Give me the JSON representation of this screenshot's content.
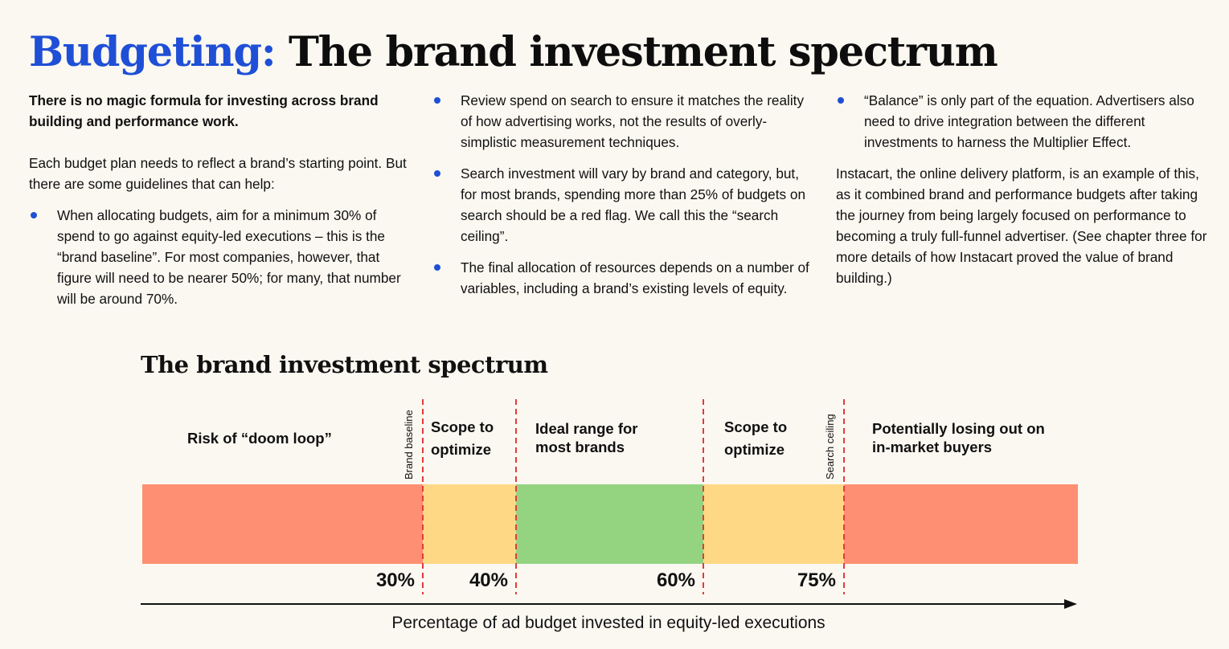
{
  "header": {
    "accent": "Budgeting:",
    "title": "The brand investment spectrum"
  },
  "column1": {
    "lead": "There is no magic formula for investing across brand building and performance work.",
    "intro": "Each budget plan needs to reflect a brand’s starting point. But there are some guidelines that can help:",
    "bullets": [
      "When allocating budgets, aim for a minimum 30% of spend to go against equity-led executions – this is the “brand baseline”. For most companies, however, that figure will need to be nearer 50%; for many, that number will be around 70%."
    ]
  },
  "column2": {
    "bullets": [
      "Review spend on search to ensure it matches the reality of how advertising works, not the results of overly-simplistic measurement techniques.",
      "Search investment will vary by brand and category, but, for most brands, spending more than 25% of budgets on search should be a red flag. We call this the “search ceiling”.",
      "The final allocation of resources depends on a number of variables, including a brand’s existing levels of equity."
    ]
  },
  "column3": {
    "bullets": [
      "“Balance” is only part of the equation. Advertisers also need to drive integration between the different investments to harness the Multiplier Effect."
    ],
    "paragraph": "Instacart, the online delivery platform, is an example of this, as it combined brand and performance budgets after taking the journey from being largely focused on performance to becoming a truly full-funnel advertiser. (See chapter three for more details of how Instacart proved the value of brand building.)"
  },
  "chart_data": {
    "type": "bar",
    "title": "The brand investment spectrum",
    "xlabel": "Percentage of ad budget invested in equity-led executions",
    "xlim": [
      0,
      100
    ],
    "segments": [
      {
        "name": "Risk of “doom loop”",
        "start": 0,
        "end": 30,
        "color": "#ff8f72"
      },
      {
        "name": "Scope to optimize",
        "start": 30,
        "end": 40,
        "color": "#ffd885"
      },
      {
        "name": "Ideal range for most brands",
        "start": 40,
        "end": 60,
        "color": "#94d481"
      },
      {
        "name": "Scope to optimize",
        "start": 60,
        "end": 75,
        "color": "#ffd885"
      },
      {
        "name": "Potentially losing out on in-market buyers",
        "start": 75,
        "end": 100,
        "color": "#ff8f72"
      }
    ],
    "thresholds": [
      {
        "value": 30,
        "label": "30%"
      },
      {
        "value": 40,
        "label": "40%"
      },
      {
        "value": 60,
        "label": "60%"
      },
      {
        "value": 75,
        "label": "75%"
      }
    ],
    "markers": [
      {
        "value": 30,
        "label": "Brand baseline"
      },
      {
        "value": 75,
        "label": "Search ceiling"
      }
    ],
    "line_color": "#e23b3b",
    "axis_color": "#111111"
  }
}
